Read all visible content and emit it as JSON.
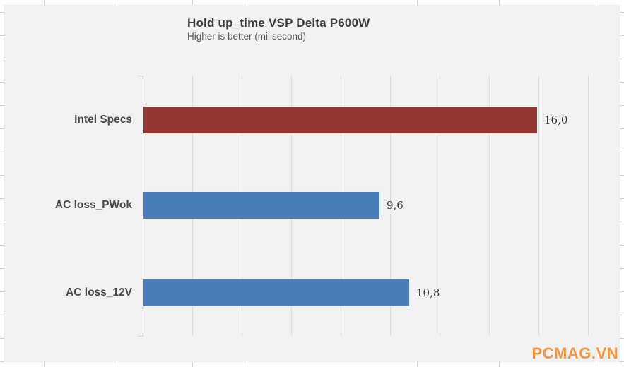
{
  "chart_data": {
    "type": "bar",
    "orientation": "horizontal",
    "title": "Hold up_time VSP Delta P600W",
    "subtitle": "Higher is better (milisecond)",
    "categories": [
      "Intel Specs",
      "AC loss_PWok",
      "AC loss_12V"
    ],
    "values": [
      16.0,
      9.6,
      10.8
    ],
    "value_labels": [
      "16,0",
      "9,6",
      "10,8"
    ],
    "series_colors": [
      "#943634",
      "#4A7EBB",
      "#4A7EBB"
    ],
    "xlim": [
      0,
      18
    ],
    "gridline_step": 2,
    "grid": true,
    "legend": "none",
    "axis_tick_labels_visible": false
  },
  "watermark": {
    "text": "PCMAG.VN",
    "color": "#F79440"
  },
  "colors": {
    "chart_background": "#F1F1F1",
    "page_background": "#FFFFFF",
    "gridline": "#DCDCDC",
    "title_text": "#3F3F3F",
    "subtitle_text": "#595959",
    "category_text": "#4A4A4A",
    "value_text": "#3B3B3B",
    "red_bar": "#943634",
    "blue_bar": "#4A7EBB"
  }
}
